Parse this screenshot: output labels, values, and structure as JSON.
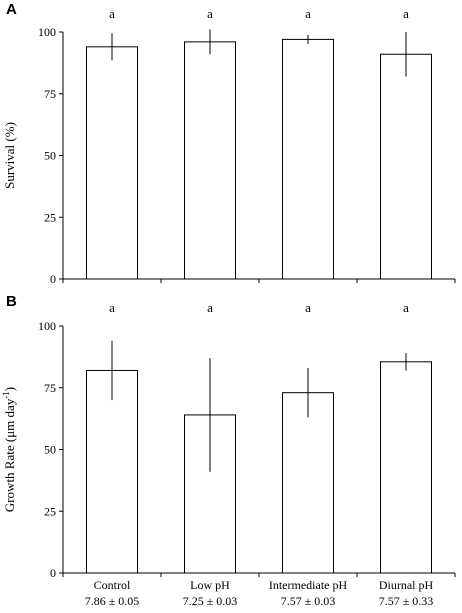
{
  "chart_data": [
    {
      "panel_label": "A",
      "type": "bar",
      "categories": [
        "Control",
        "Low pH",
        "Intermediate pH",
        "Diurnal pH"
      ],
      "values": [
        94,
        96,
        97,
        91
      ],
      "errors": [
        5.5,
        5,
        1.8,
        9
      ],
      "significance": [
        "a",
        "a",
        "a",
        "a"
      ],
      "ylabel": "Survival (%)",
      "ylim": [
        0,
        100
      ],
      "yticks": [
        0,
        25,
        50,
        75,
        100
      ],
      "show_x_labels": false
    },
    {
      "panel_label": "B",
      "type": "bar",
      "categories": [
        "Control",
        "Low pH",
        "Intermediate pH",
        "Diurnal pH"
      ],
      "category_sublabels": [
        "7.86 ± 0.05",
        "7.25 ± 0.03",
        "7.57 ± 0.03",
        "7.57 ± 0.33"
      ],
      "values": [
        82,
        64,
        73,
        85.5
      ],
      "errors": [
        12,
        23,
        10,
        3.5
      ],
      "significance": [
        "a",
        "a",
        "a",
        "a"
      ],
      "ylabel_main": "Growth Rate (μm day",
      "ylabel_sup": "-1",
      "ylabel_end": ")",
      "ylim": [
        0,
        100
      ],
      "yticks": [
        0,
        25,
        50,
        75,
        100
      ],
      "show_x_labels": true
    }
  ]
}
